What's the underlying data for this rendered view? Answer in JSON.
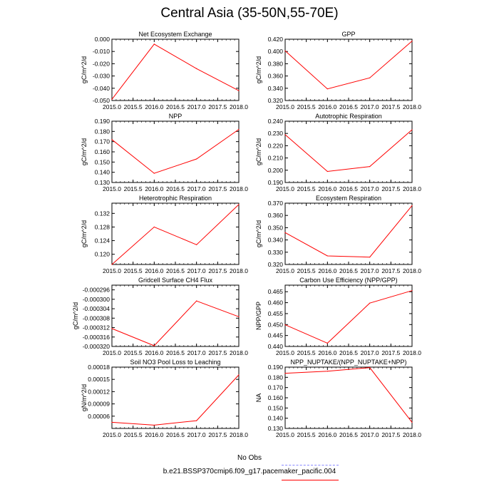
{
  "title": "Central Asia (35-50N,55-70E)",
  "colors": {
    "series": "#ff0000",
    "obs": "#8888ff",
    "axis": "#000000"
  },
  "legend": {
    "obs_label": "No Obs",
    "model_label": "b.e21.BSSP370cmip6.f09_g17.pacemaker_pacific.004"
  },
  "chart_data": [
    {
      "type": "line",
      "title": "Net Ecosystem Exchange",
      "ylabel": "gC/m^2/d",
      "xlim": [
        2015.0,
        2018.0
      ],
      "ylim": [
        -0.05,
        0.0
      ],
      "xticks": [
        "2015.0",
        "2015.5",
        "2016.0",
        "2016.5",
        "2017.0",
        "2017.5",
        "2018.0"
      ],
      "yticks": [
        -0.05,
        -0.04,
        -0.03,
        -0.02,
        -0.01,
        0.0
      ],
      "ytick_labels": [
        "-0.050",
        "-0.040",
        "-0.030",
        "-0.020",
        "-0.010",
        "0.000"
      ],
      "x": [
        2015,
        2016,
        2017,
        2018
      ],
      "values": [
        -0.049,
        -0.004,
        -0.024,
        -0.042
      ]
    },
    {
      "type": "line",
      "title": "GPP",
      "ylabel": "gC/m^2/d",
      "xlim": [
        2015.0,
        2018.0
      ],
      "ylim": [
        0.32,
        0.42
      ],
      "xticks": [
        "2015.0",
        "2015.5",
        "2016.0",
        "2016.5",
        "2017.0",
        "2017.5",
        "2018.0"
      ],
      "yticks": [
        0.32,
        0.34,
        0.36,
        0.38,
        0.4,
        0.42
      ],
      "ytick_labels": [
        "0.320",
        "0.340",
        "0.360",
        "0.380",
        "0.400",
        "0.420"
      ],
      "x": [
        2015,
        2016,
        2017,
        2018
      ],
      "values": [
        0.401,
        0.339,
        0.357,
        0.417
      ]
    },
    {
      "type": "line",
      "title": "NPP",
      "ylabel": "gC/m^2/d",
      "xlim": [
        2015.0,
        2018.0
      ],
      "ylim": [
        0.13,
        0.19
      ],
      "xticks": [
        "2015.0",
        "2015.5",
        "2016.0",
        "2016.5",
        "2017.0",
        "2017.5",
        "2018.0"
      ],
      "yticks": [
        0.13,
        0.14,
        0.15,
        0.16,
        0.17,
        0.18,
        0.19
      ],
      "ytick_labels": [
        "0.130",
        "0.140",
        "0.150",
        "0.160",
        "0.170",
        "0.180",
        "0.190"
      ],
      "x": [
        2015,
        2016,
        2017,
        2018
      ],
      "values": [
        0.172,
        0.139,
        0.153,
        0.182
      ]
    },
    {
      "type": "line",
      "title": "Autotrophic Respiration",
      "ylabel": "gC/m^2/d",
      "xlim": [
        2015.0,
        2018.0
      ],
      "ylim": [
        0.19,
        0.24
      ],
      "xticks": [
        "2015.0",
        "2015.5",
        "2016.0",
        "2016.5",
        "2017.0",
        "2017.5",
        "2018.0"
      ],
      "yticks": [
        0.19,
        0.2,
        0.21,
        0.22,
        0.23,
        0.24
      ],
      "ytick_labels": [
        "0.190",
        "0.200",
        "0.210",
        "0.220",
        "0.230",
        "0.240"
      ],
      "x": [
        2015,
        2016,
        2017,
        2018
      ],
      "values": [
        0.229,
        0.199,
        0.203,
        0.233
      ]
    },
    {
      "type": "line",
      "title": "Heterotrophic Respiration",
      "ylabel": "gC/m^2/d",
      "xlim": [
        2015.0,
        2018.0
      ],
      "ylim": [
        0.117,
        0.135
      ],
      "xticks": [
        "2015.0",
        "2015.5",
        "2016.0",
        "2016.5",
        "2017.0",
        "2017.5",
        "2018.0"
      ],
      "yticks": [
        0.12,
        0.124,
        0.128,
        0.132
      ],
      "ytick_labels": [
        "0.120",
        "0.124",
        "0.128",
        "0.132"
      ],
      "x": [
        2015,
        2016,
        2017,
        2018
      ],
      "values": [
        0.117,
        0.128,
        0.1228,
        0.1346
      ]
    },
    {
      "type": "line",
      "title": "Ecosystem Respiration",
      "ylabel": "gC/m^2/d",
      "xlim": [
        2015.0,
        2018.0
      ],
      "ylim": [
        0.32,
        0.37
      ],
      "xticks": [
        "2015.0",
        "2015.5",
        "2016.0",
        "2016.5",
        "2017.0",
        "2017.5",
        "2018.0"
      ],
      "yticks": [
        0.32,
        0.33,
        0.34,
        0.35,
        0.36,
        0.37
      ],
      "ytick_labels": [
        "0.320",
        "0.330",
        "0.340",
        "0.350",
        "0.360",
        "0.370"
      ],
      "x": [
        2015,
        2016,
        2017,
        2018
      ],
      "values": [
        0.346,
        0.327,
        0.326,
        0.368
      ]
    },
    {
      "type": "line",
      "title": "Gridcell Surface CH4 Flux",
      "ylabel": "gC/m^2/d",
      "xlim": [
        2015.0,
        2018.0
      ],
      "ylim": [
        -0.00032,
        -0.000294
      ],
      "xticks": [
        "2015.0",
        "2015.5",
        "2016.0",
        "2016.5",
        "2017.0",
        "2017.5",
        "2018.0"
      ],
      "yticks": [
        -0.00032,
        -0.000316,
        -0.000312,
        -0.000308,
        -0.000304,
        -0.0003,
        -0.000296
      ],
      "ytick_labels": [
        "-0.000320",
        "-0.000316",
        "-0.000312",
        "-0.000308",
        "-0.000304",
        "-0.000300",
        "-0.000296"
      ],
      "x": [
        2015,
        2016,
        2017,
        2018
      ],
      "values": [
        -0.0003124,
        -0.0003197,
        -0.0003007,
        -0.0003074
      ]
    },
    {
      "type": "line",
      "title": "Carbon Use Efficiency (NPP/GPP)",
      "ylabel": "NPP/GPP",
      "xlim": [
        2015.0,
        2018.0
      ],
      "ylim": [
        0.44,
        0.468
      ],
      "xticks": [
        "2015.0",
        "2015.5",
        "2016.0",
        "2016.5",
        "2017.0",
        "2017.5",
        "2018.0"
      ],
      "yticks": [
        0.44,
        0.445,
        0.45,
        0.455,
        0.46,
        0.465
      ],
      "ytick_labels": [
        "0.440",
        "0.445",
        "0.450",
        "0.455",
        "0.460",
        "0.465"
      ],
      "x": [
        2015,
        2016,
        2017,
        2018
      ],
      "values": [
        0.4499,
        0.4415,
        0.4598,
        0.4655
      ]
    },
    {
      "type": "line",
      "title": "Soil NO3 Pool Loss to Leaching",
      "ylabel": "gN/m^2/d",
      "xlim": [
        2015.0,
        2018.0
      ],
      "ylim": [
        3e-05,
        0.00018
      ],
      "xticks": [
        "2015.0",
        "2015.5",
        "2016.0",
        "2016.5",
        "2017.0",
        "2017.5",
        "2018.0"
      ],
      "yticks": [
        6e-05,
        9e-05,
        0.00012,
        0.00015,
        0.00018
      ],
      "ytick_labels": [
        "0.00006",
        "0.00009",
        "0.00012",
        "0.00015",
        "0.00018"
      ],
      "x": [
        2015,
        2016,
        2017,
        2018
      ],
      "values": [
        4.5e-05,
        3.8e-05,
        4.9e-05,
        0.000161
      ]
    },
    {
      "type": "line",
      "title": "NPP_NUPTAKE/(NPP_NUPTAKE+NPP)",
      "ylabel": "NA",
      "xlim": [
        2015.0,
        2018.0
      ],
      "ylim": [
        0.13,
        0.19
      ],
      "xticks": [
        "2015.0",
        "2015.5",
        "2016.0",
        "2016.5",
        "2017.0",
        "2017.5",
        "2018.0"
      ],
      "yticks": [
        0.13,
        0.14,
        0.15,
        0.16,
        0.17,
        0.18,
        0.19
      ],
      "ytick_labels": [
        "0.130",
        "0.140",
        "0.150",
        "0.160",
        "0.170",
        "0.180",
        "0.190"
      ],
      "x": [
        2015,
        2016,
        2017,
        2018
      ],
      "values": [
        0.184,
        0.186,
        0.1895,
        0.136
      ]
    }
  ]
}
